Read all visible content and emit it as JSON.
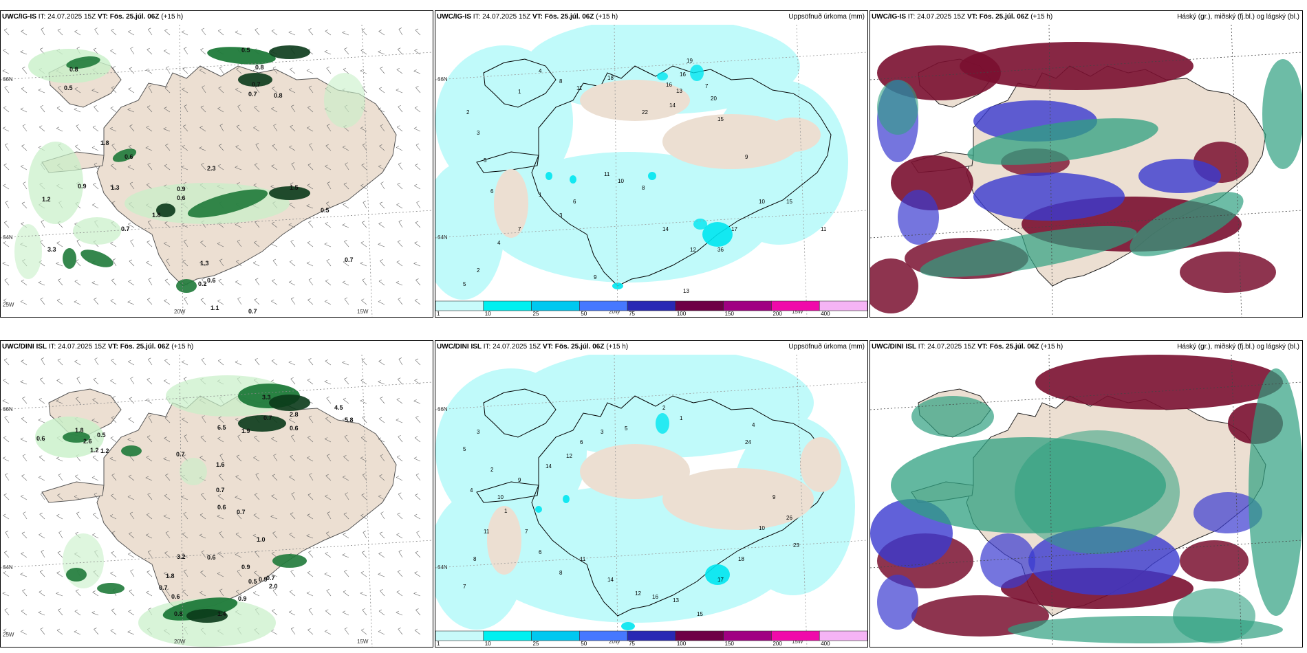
{
  "colors": {
    "land": "#ecdfd2",
    "sea": "#ffffff",
    "precip_light": "#c8f0c8",
    "precip_mid": "#1f7a3a",
    "precip_dark": "#0a3a1a",
    "cyan_light": "#c0fafa",
    "cyan": "#00e6f0",
    "cloud_high": "#7a1030",
    "cloud_mid": "#3a3ad0",
    "cloud_low": "#2fa080"
  },
  "panels": [
    {
      "id": "p1",
      "model": "UWC/IG-IS",
      "it_label": "IT: 24.07.2025 15Z",
      "vt_label": "VT: Fös. 25.júl. 06Z",
      "lead": "(+15 h)",
      "right_label": "",
      "kind": "precip-wind"
    },
    {
      "id": "p2",
      "model": "UWC/IG-IS",
      "it_label": "IT: 24.07.2025 15Z",
      "vt_label": "VT: Fös. 25.júl. 06Z",
      "lead": "(+15 h)",
      "right_label": "Uppsöfnuð úrkoma (mm)",
      "kind": "accum"
    },
    {
      "id": "p3",
      "model": "UWC/IG-IS",
      "it_label": "IT: 24.07.2025 15Z",
      "vt_label": "VT: Fös. 25.júl. 06Z",
      "lead": "(+15 h)",
      "right_label": "Háský (gr.), miðský (fj.bl.) og lágský (bl.)",
      "kind": "clouds"
    },
    {
      "id": "p4",
      "model": "UWC/DINI ISL",
      "it_label": "IT: 24.07.2025 15Z",
      "vt_label": "VT: Fös. 25.júl. 06Z",
      "lead": "(+15 h)",
      "right_label": "",
      "kind": "precip-wind"
    },
    {
      "id": "p5",
      "model": "UWC/DINI ISL",
      "it_label": "IT: 24.07.2025 15Z",
      "vt_label": "VT: Fös. 25.júl. 06Z",
      "lead": "(+15 h)",
      "right_label": "Uppsöfnuð úrkoma (mm)",
      "kind": "accum"
    },
    {
      "id": "p6",
      "model": "UWC/DINI ISL",
      "it_label": "IT: 24.07.2025 15Z",
      "vt_label": "VT: Fös. 25.júl. 06Z",
      "lead": "(+15 h)",
      "right_label": "Háský (gr.), miðský (fj.bl.) og lágský (bl.)",
      "kind": "clouds"
    }
  ],
  "axis_labels": {
    "lat_66": "66N",
    "lat_64": "64N",
    "lon_25": "25W",
    "lon_20": "20W",
    "lon_15": "15W"
  },
  "accum_scale": {
    "ticks": [
      "1",
      "10",
      "25",
      "50",
      "75",
      "100",
      "150",
      "200",
      "400"
    ],
    "colors": [
      "#c8fafa",
      "#00f0f0",
      "#00c8f0",
      "#4678ff",
      "#2828b4",
      "#6e0046",
      "#a00082",
      "#f00aaa",
      "#f5b4f5"
    ]
  },
  "p1_values": [
    "0.8",
    "0.5",
    "0.7",
    "0.7",
    "0.8",
    "0.6",
    "1.8",
    "0.9",
    "1.2",
    "1.3",
    "0.5",
    "1.8",
    "0.9",
    "3.3",
    "0.7",
    "0.6",
    "0.2",
    "1.1",
    "0.7",
    "2.3",
    "0.6",
    "1.5",
    "0.5",
    "0.8",
    "1.3",
    "0.7"
  ],
  "p4_values": [
    "0.6",
    "0.5",
    "2.6",
    "1.8",
    "0.7",
    "1.6",
    "1.2",
    "1.2",
    "0.7",
    "0.6",
    "0.7",
    "0.9",
    "1.0",
    "0.7",
    "0.5",
    "0.6",
    "0.8",
    "1.4",
    "0.9",
    "0.6",
    "0.7",
    "1.9",
    "6.5",
    "3.3",
    "2.8",
    "4.5",
    "5.8",
    "0.9",
    "2.0",
    "1.8",
    "0.7",
    "3.2",
    "0.6"
  ],
  "p2_values": [
    "2",
    "3",
    "5",
    "6",
    "1",
    "4",
    "8",
    "11",
    "18",
    "22",
    "14",
    "19",
    "16",
    "7",
    "13",
    "16",
    "20",
    "15",
    "9",
    "10",
    "17",
    "36",
    "12",
    "14",
    "8",
    "10",
    "11",
    "6",
    "3",
    "1",
    "7",
    "4",
    "2",
    "5",
    "9",
    "13",
    "15",
    "11"
  ],
  "p5_values": [
    "3",
    "5",
    "2",
    "4",
    "1",
    "7",
    "6",
    "8",
    "11",
    "14",
    "12",
    "16",
    "13",
    "15",
    "17",
    "18",
    "10",
    "9",
    "26",
    "23",
    "24",
    "4",
    "2",
    "1",
    "5",
    "3",
    "6",
    "12",
    "14",
    "9",
    "10",
    "11",
    "8",
    "7"
  ]
}
